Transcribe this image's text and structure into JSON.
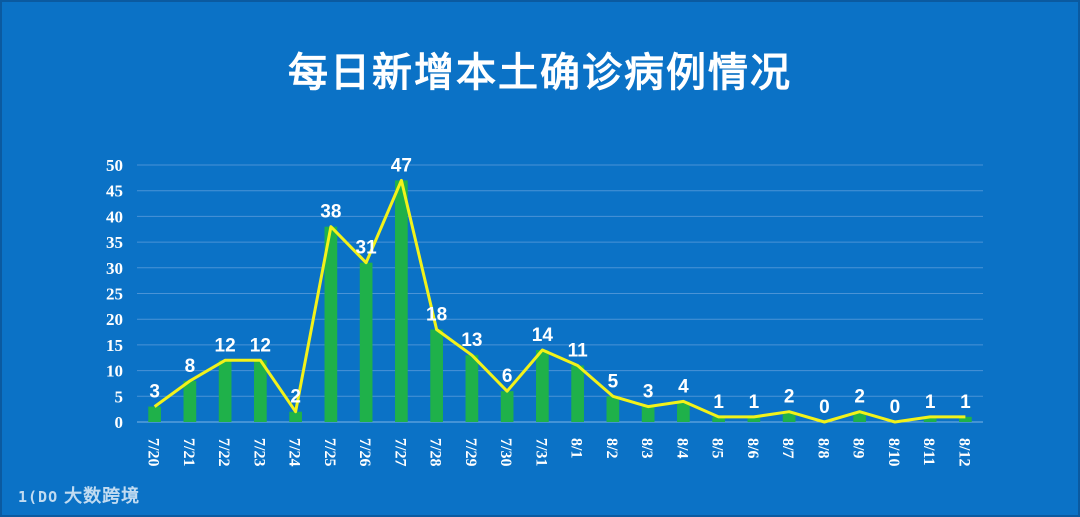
{
  "chart_data": {
    "type": "bar",
    "title": "每日新增本土确诊病例情况",
    "categories": [
      "7/20",
      "7/21",
      "7/22",
      "7/23",
      "7/24",
      "7/25",
      "7/26",
      "7/27",
      "7/28",
      "7/29",
      "7/30",
      "7/31",
      "8/1",
      "8/2",
      "8/3",
      "8/4",
      "8/5",
      "8/6",
      "8/7",
      "8/8",
      "8/9",
      "8/10",
      "8/11",
      "8/12"
    ],
    "series": [
      {
        "type": "bar",
        "values": [
          3,
          8,
          12,
          12,
          2,
          38,
          31,
          47,
          18,
          13,
          6,
          14,
          11,
          5,
          3,
          4,
          1,
          1,
          2,
          0,
          2,
          0,
          1,
          1
        ]
      },
      {
        "type": "line",
        "values": [
          3,
          8,
          12,
          12,
          2,
          38,
          31,
          47,
          18,
          13,
          6,
          14,
          11,
          5,
          3,
          4,
          1,
          1,
          2,
          0,
          2,
          0,
          1,
          1
        ]
      }
    ],
    "ylim": [
      0,
      50
    ],
    "yticks": [
      0,
      5,
      10,
      15,
      20,
      25,
      30,
      35,
      40,
      45,
      50
    ],
    "grid": true,
    "colors": {
      "bar": "#1fb14a",
      "line": "#f2f21a",
      "background": "#0b72c6",
      "grid": "#4a93d6",
      "text": "#ffffff"
    }
  },
  "watermark": {
    "logo": "1(DO",
    "text": "大数跨境"
  }
}
